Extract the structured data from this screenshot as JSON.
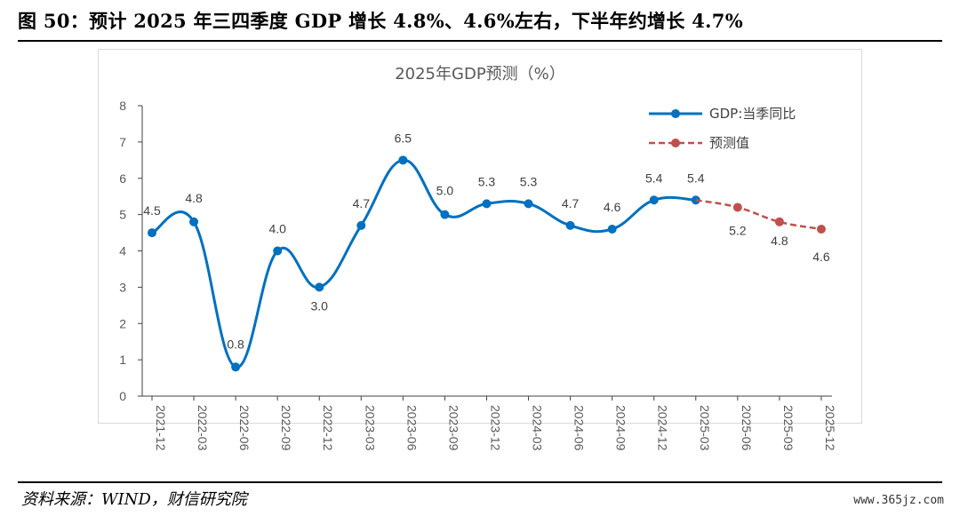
{
  "figure": {
    "title": "图 50：预计 2025 年三四季度 GDP 增长 4.8%、4.6%左右，下半年约增长 4.7%",
    "source": "资料来源：WIND，财信研究院",
    "watermark": "www.365jz.com"
  },
  "chart_data": {
    "type": "line",
    "title": "2025年GDP预测（%）",
    "categories": [
      "2021-12",
      "2022-03",
      "2022-06",
      "2022-09",
      "2022-12",
      "2023-03",
      "2023-06",
      "2023-09",
      "2023-12",
      "2024-03",
      "2024-06",
      "2024-09",
      "2024-12",
      "2025-03",
      "2025-06",
      "2025-09",
      "2025-12"
    ],
    "series": [
      {
        "name": "GDP:当季同比",
        "color": "#0070C0",
        "style": "solid",
        "values": [
          4.5,
          4.8,
          0.8,
          4.0,
          3.0,
          4.7,
          6.5,
          5.0,
          5.3,
          5.3,
          4.7,
          4.6,
          5.4,
          5.4,
          null,
          null,
          null
        ],
        "labels": [
          "4.5",
          "4.8",
          "0.8",
          "4.0",
          "3.0",
          "4.7",
          "6.5",
          "5.0",
          "5.3",
          "5.3",
          "4.7",
          "4.6",
          "5.4",
          "5.4",
          "",
          "",
          ""
        ]
      },
      {
        "name": "预测值",
        "color": "#C0504D",
        "style": "dashed",
        "values": [
          null,
          null,
          null,
          null,
          null,
          null,
          null,
          null,
          null,
          null,
          null,
          null,
          null,
          5.4,
          5.2,
          4.8,
          4.6
        ],
        "labels": [
          "",
          "",
          "",
          "",
          "",
          "",
          "",
          "",
          "",
          "",
          "",
          "",
          "",
          "",
          "5.2",
          "4.8",
          "4.6"
        ]
      }
    ],
    "ylim": [
      0,
      8
    ],
    "yticks": [
      "0",
      "1",
      "2",
      "3",
      "4",
      "5",
      "6",
      "7",
      "8"
    ],
    "legend": "top-right",
    "grid": false
  }
}
